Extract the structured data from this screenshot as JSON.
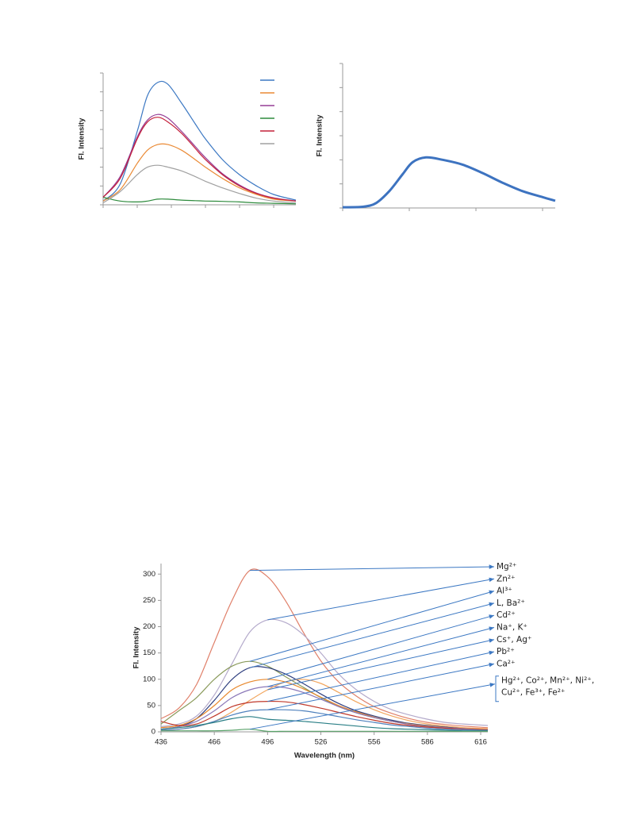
{
  "chart_data": [
    {
      "type": "line",
      "ylabel": "Fl. Intensity",
      "tick_labels": false,
      "legend": "upper right",
      "xlim": [
        0,
        5.65
      ],
      "xticks": [
        0,
        1,
        2,
        3,
        4,
        5
      ],
      "ylim": [
        0,
        7
      ],
      "yticks": [
        0,
        1,
        2,
        3,
        4,
        5,
        6,
        7
      ],
      "x": [
        0,
        0.5,
        1,
        1.3,
        1.6,
        1.9,
        2.3,
        2.7,
        3,
        3.5,
        4,
        4.5,
        5,
        5.65
      ],
      "series": [
        {
          "color": "#3c78c3",
          "values": [
            0.2,
            1.1,
            3.9,
            5.8,
            6.5,
            6.4,
            5.4,
            4.3,
            3.5,
            2.4,
            1.6,
            1.0,
            0.55,
            0.25
          ]
        },
        {
          "color": "#ea8a35",
          "values": [
            0.2,
            0.8,
            2.2,
            2.9,
            3.2,
            3.2,
            2.9,
            2.4,
            2.0,
            1.4,
            0.9,
            0.55,
            0.3,
            0.2
          ]
        },
        {
          "color": "#953d96",
          "values": [
            0.4,
            1.5,
            3.6,
            4.5,
            4.8,
            4.6,
            3.9,
            3.1,
            2.5,
            1.65,
            1.05,
            0.62,
            0.37,
            0.2
          ]
        },
        {
          "color": "#2e8b3d",
          "values": [
            0.4,
            0.2,
            0.15,
            0.2,
            0.3,
            0.3,
            0.25,
            0.22,
            0.2,
            0.18,
            0.15,
            0.1,
            0.08,
            0.05
          ]
        },
        {
          "color": "#c4203a",
          "values": [
            0.4,
            1.4,
            3.5,
            4.4,
            4.65,
            4.4,
            3.8,
            3.0,
            2.4,
            1.6,
            1.0,
            0.6,
            0.35,
            0.2
          ]
        },
        {
          "color": "#a0a0a0",
          "values": [
            0.1,
            0.7,
            1.6,
            2.0,
            2.1,
            2.0,
            1.8,
            1.5,
            1.25,
            0.9,
            0.6,
            0.35,
            0.2,
            0.1
          ]
        }
      ]
    },
    {
      "type": "line",
      "ylabel": "Fl. Intensity",
      "tick_labels": false,
      "xlim": [
        0,
        3.19
      ],
      "xticks": [
        0,
        1,
        2,
        3
      ],
      "ylim": [
        0,
        6
      ],
      "yticks": [
        0,
        1,
        2,
        3,
        4,
        5,
        6
      ],
      "x": [
        0,
        0.3,
        0.5,
        0.7,
        0.9,
        1.05,
        1.25,
        1.5,
        1.8,
        2.1,
        2.4,
        2.7,
        3.0,
        3.19
      ],
      "series": [
        {
          "color": "#3d73c0",
          "width": 3,
          "values": [
            0.03,
            0.05,
            0.2,
            0.7,
            1.4,
            1.9,
            2.1,
            2.0,
            1.8,
            1.45,
            1.05,
            0.7,
            0.45,
            0.3
          ]
        }
      ]
    },
    {
      "type": "line",
      "xlabel": "Wavelength (nm)",
      "ylabel": "Fl. Intensity",
      "xlim": [
        436,
        620
      ],
      "xticks": [
        436,
        466,
        496,
        526,
        556,
        586,
        616
      ],
      "ylim": [
        0,
        320
      ],
      "yticks": [
        0,
        50,
        100,
        150,
        200,
        250,
        300
      ],
      "x": [
        436,
        446,
        456,
        466,
        476,
        486,
        496,
        506,
        516,
        526,
        536,
        546,
        556,
        566,
        576,
        586,
        596,
        606,
        620
      ],
      "series": [
        {
          "color": "#e0806a",
          "values": [
            25,
            45,
            90,
            170,
            250,
            307,
            295,
            250,
            190,
            135,
            95,
            68,
            48,
            35,
            25,
            18,
            14,
            11,
            8
          ]
        },
        {
          "color": "#b4aacb",
          "values": [
            10,
            15,
            30,
            70,
            130,
            190,
            213,
            208,
            185,
            150,
            110,
            80,
            58,
            42,
            32,
            24,
            18,
            15,
            12
          ]
        },
        {
          "color": "#8a9a5b",
          "values": [
            15,
            40,
            65,
            100,
            125,
            134,
            125,
            105,
            85,
            65,
            48,
            36,
            27,
            20,
            15,
            11,
            8,
            6,
            4
          ]
        },
        {
          "color": "#2f3f7f",
          "values": [
            5,
            10,
            25,
            60,
            100,
            122,
            122,
            110,
            92,
            72,
            54,
            40,
            30,
            22,
            16,
            12,
            9,
            7,
            5
          ]
        },
        {
          "color": "#e8882c",
          "values": [
            8,
            12,
            25,
            50,
            80,
            95,
            100,
            95,
            82,
            66,
            50,
            38,
            28,
            20,
            15,
            11,
            8,
            6,
            5
          ]
        },
        {
          "color": "#8b78b8",
          "values": [
            5,
            10,
            20,
            40,
            65,
            80,
            86,
            84,
            75,
            62,
            48,
            36,
            27,
            20,
            14,
            10,
            8,
            6,
            4
          ]
        },
        {
          "color": "#f2a65e",
          "values": [
            3,
            5,
            10,
            20,
            38,
            60,
            80,
            95,
            100,
            92,
            75,
            57,
            42,
            30,
            21,
            15,
            11,
            8,
            6
          ]
        },
        {
          "color": "#c0392b",
          "values": [
            20,
            12,
            15,
            30,
            48,
            56,
            58,
            57,
            52,
            45,
            37,
            29,
            22,
            16,
            12,
            9,
            7,
            5,
            4
          ]
        },
        {
          "color": "#4f81bd",
          "values": [
            3,
            5,
            10,
            20,
            32,
            40,
            42,
            42,
            40,
            35,
            29,
            23,
            18,
            13,
            10,
            7,
            5,
            4,
            3
          ]
        },
        {
          "color": "#2a7f86",
          "values": [
            5,
            8,
            12,
            18,
            25,
            29,
            24,
            22,
            20,
            17,
            14,
            11,
            8,
            6,
            5,
            4,
            3,
            2,
            2
          ]
        },
        {
          "color": "#5aa36a",
          "values": [
            2,
            2,
            2,
            2,
            3,
            5,
            1,
            1,
            1,
            1,
            1,
            1,
            1,
            1,
            1,
            1,
            1,
            1,
            1
          ]
        }
      ],
      "annotations": [
        {
          "text": "Mg²⁺",
          "x": 486,
          "y": 307
        },
        {
          "text": "Zn²⁺",
          "x": 496,
          "y": 213
        },
        {
          "text": "Al³⁺",
          "x": 486,
          "y": 134
        },
        {
          "text": "L, Ba²⁺",
          "x": 486,
          "y": 122
        },
        {
          "text": "Cd²⁺",
          "x": 496,
          "y": 100
        },
        {
          "text": "Na⁺, K⁺",
          "x": 496,
          "y": 86
        },
        {
          "text": "Cs⁺, Ag⁺",
          "x": 496,
          "y": 80
        },
        {
          "text": "Pb²⁺",
          "x": 496,
          "y": 58
        },
        {
          "text": "Ca²⁺",
          "x": 496,
          "y": 42
        },
        {
          "text": [
            "Hg²⁺, Co²⁺, Mn²⁺, Ni²⁺,",
            "Cu²⁺, Fe³⁺, Fe²⁺"
          ],
          "x": 486,
          "y": 5
        }
      ]
    }
  ]
}
